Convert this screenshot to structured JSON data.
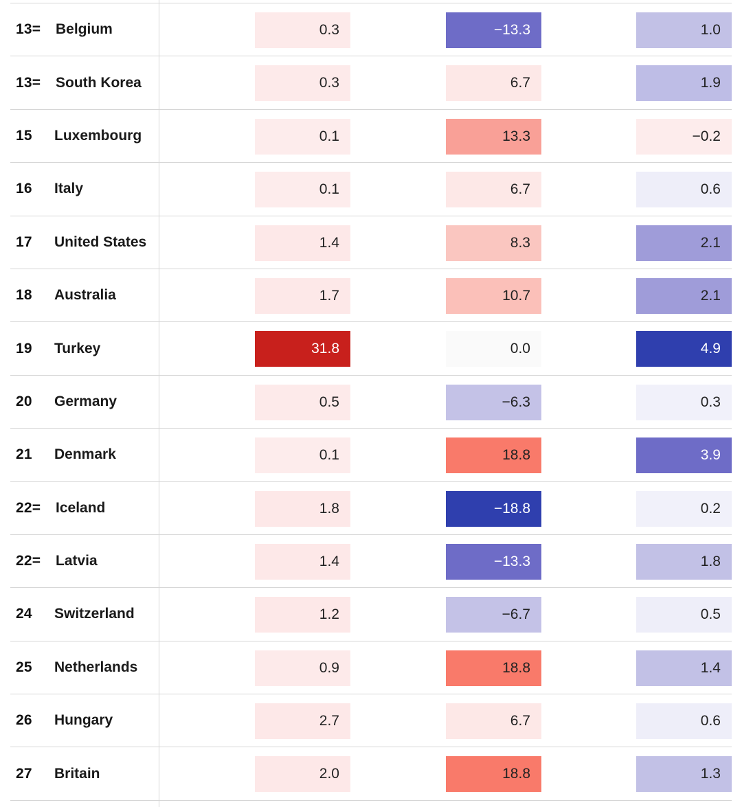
{
  "rows": [
    {
      "rank": "13=",
      "country": "Belgium",
      "v1": "0.3",
      "v2": "−13.3",
      "v3": "1.0",
      "c1": "#fdeaea",
      "c2": "#6e6cc7",
      "c3": "#c2c1e6",
      "d1": false,
      "d2": true,
      "d3": false
    },
    {
      "rank": "13=",
      "country": "South Korea",
      "v1": "0.3",
      "v2": "6.7",
      "v3": "1.9",
      "c1": "#fdeaea",
      "c2": "#fde8e7",
      "c3": "#bebde6",
      "d1": false,
      "d2": false,
      "d3": false
    },
    {
      "rank": "15",
      "country": "Luxembourg",
      "v1": "0.1",
      "v2": "13.3",
      "v3": "−0.2",
      "c1": "#fdecec",
      "c2": "#f9a097",
      "c3": "#fdecec",
      "d1": false,
      "d2": false,
      "d3": false
    },
    {
      "rank": "16",
      "country": "Italy",
      "v1": "0.1",
      "v2": "6.7",
      "v3": "0.6",
      "c1": "#fdecec",
      "c2": "#fde8e7",
      "c3": "#eeeef9",
      "d1": false,
      "d2": false,
      "d3": false
    },
    {
      "rank": "17",
      "country": "United States",
      "v1": "1.4",
      "v2": "8.3",
      "v3": "2.1",
      "c1": "#fde8e8",
      "c2": "#fac6c0",
      "c3": "#9f9cd9",
      "d1": false,
      "d2": false,
      "d3": false
    },
    {
      "rank": "18",
      "country": "Australia",
      "v1": "1.7",
      "v2": "10.7",
      "v3": "2.1",
      "c1": "#fde8e8",
      "c2": "#fbc0b9",
      "c3": "#9f9cd9",
      "d1": false,
      "d2": false,
      "d3": false
    },
    {
      "rank": "19",
      "country": "Turkey",
      "v1": "31.8",
      "v2": "0.0",
      "v3": "4.9",
      "c1": "#c8201c",
      "c2": "#fafafa",
      "c3": "#2f3fae",
      "d1": true,
      "d2": false,
      "d3": true
    },
    {
      "rank": "20",
      "country": "Germany",
      "v1": "0.5",
      "v2": "−6.3",
      "v3": "0.3",
      "c1": "#fdeaea",
      "c2": "#c4c2e7",
      "c3": "#f1f1fa",
      "d1": false,
      "d2": false,
      "d3": false
    },
    {
      "rank": "21",
      "country": "Denmark",
      "v1": "0.1",
      "v2": "18.8",
      "v3": "3.9",
      "c1": "#fdecec",
      "c2": "#f97a6a",
      "c3": "#6e6cc7",
      "d1": false,
      "d2": false,
      "d3": true
    },
    {
      "rank": "22=",
      "country": "Iceland",
      "v1": "1.8",
      "v2": "−18.8",
      "v3": "0.2",
      "c1": "#fde8e8",
      "c2": "#2f3fae",
      "c3": "#f1f1fa",
      "d1": false,
      "d2": true,
      "d3": false
    },
    {
      "rank": "22=",
      "country": "Latvia",
      "v1": "1.4",
      "v2": "−13.3",
      "v3": "1.8",
      "c1": "#fde8e8",
      "c2": "#6e6cc7",
      "c3": "#c2c1e6",
      "d1": false,
      "d2": true,
      "d3": false
    },
    {
      "rank": "24",
      "country": "Switzerland",
      "v1": "1.2",
      "v2": "−6.7",
      "v3": "0.5",
      "c1": "#fde8e8",
      "c2": "#c4c2e7",
      "c3": "#eeeef9",
      "d1": false,
      "d2": false,
      "d3": false
    },
    {
      "rank": "25",
      "country": "Netherlands",
      "v1": "0.9",
      "v2": "18.8",
      "v3": "1.4",
      "c1": "#fdeaea",
      "c2": "#f97a6a",
      "c3": "#c2c1e6",
      "d1": false,
      "d2": false,
      "d3": false
    },
    {
      "rank": "26",
      "country": "Hungary",
      "v1": "2.7",
      "v2": "6.7",
      "v3": "0.6",
      "c1": "#fde8e8",
      "c2": "#fde8e7",
      "c3": "#eeeef9",
      "d1": false,
      "d2": false,
      "d3": false
    },
    {
      "rank": "27",
      "country": "Britain",
      "v1": "2.0",
      "v2": "18.8",
      "v3": "1.3",
      "c1": "#fde8e8",
      "c2": "#f97a6a",
      "c3": "#c2c1e6",
      "d1": false,
      "d2": false,
      "d3": false
    }
  ]
}
